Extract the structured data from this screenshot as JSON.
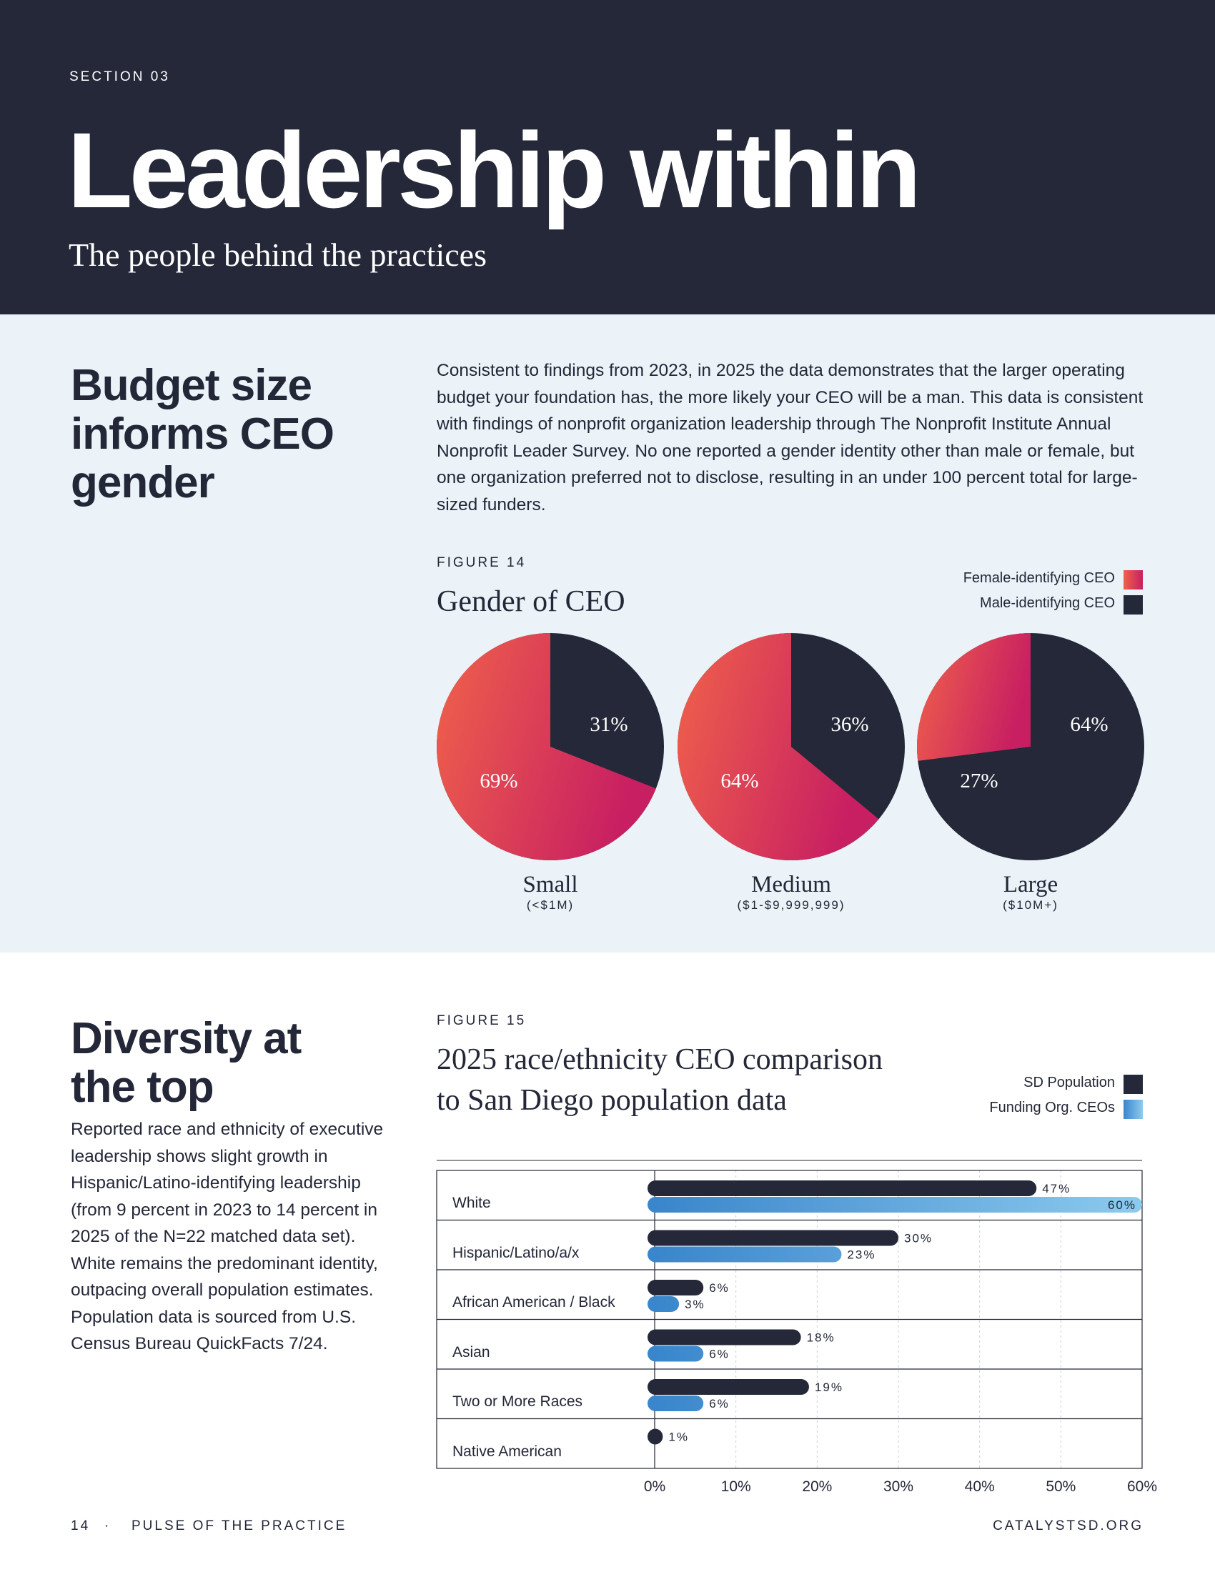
{
  "header": {
    "eyebrow": "SECTION 03",
    "title": "Leadership within",
    "subtitle": "The people behind the practices"
  },
  "budget": {
    "heading_lines": [
      "Budget size",
      "informs CEO",
      "gender"
    ],
    "body": "Consistent to findings from 2023, in 2025 the data demonstrates that the larger operating budget your foundation has, the more likely your CEO will be a man. This data is consistent with findings of nonprofit organization leadership through The Nonprofit Institute Annual Nonprofit Leader Survey. No one reported a gender identity other than male or female, but one organization preferred not to disclose, resulting in an under 100 percent total for large-sized funders."
  },
  "figure14": {
    "label": "FIGURE 14",
    "title": "Gender of CEO",
    "legend": [
      {
        "label": "Female-identifying CEO",
        "color": "#e5385e"
      },
      {
        "label": "Male-identifying CEO",
        "color": "#242838"
      }
    ],
    "colors": {
      "female_start": "#f0624a",
      "female_end": "#c81f62",
      "male": "#242838"
    },
    "chart_data": {
      "type": "pie",
      "title": "Gender of CEO",
      "series_names": [
        "Female-identifying CEO",
        "Male-identifying CEO"
      ],
      "pies": [
        {
          "name": "Small",
          "range": "(<$1M)",
          "female": 69,
          "male": 31,
          "female_label": "69%",
          "male_label": "31%"
        },
        {
          "name": "Medium",
          "range": "($1-$9,999,999)",
          "female": 64,
          "male": 36,
          "female_label": "64%",
          "male_label": "36%"
        },
        {
          "name": "Large",
          "range": "($10M+)",
          "female": 27,
          "male": 64,
          "female_label": "27%",
          "male_label": "64%"
        }
      ]
    }
  },
  "diversity": {
    "heading_lines": [
      "Diversity at",
      "the top"
    ],
    "body": "Reported race and ethnicity of executive leadership shows slight growth in Hispanic/Latino-identifying leadership (from 9 percent in 2023 to 14 percent in 2025 of the N=22 matched data set). White remains the predominant identity, outpacing overall population estimates. Population data is sourced from U.S. Census Bureau QuickFacts 7/24."
  },
  "figure15": {
    "label": "FIGURE 15",
    "title_lines": [
      "2025 race/ethnicity CEO comparison",
      "to San Diego population data"
    ],
    "legend": [
      {
        "label": "SD Population",
        "color": "#242838"
      },
      {
        "label": "Funding Org. CEOs",
        "color": "#3d8ed0"
      }
    ],
    "colors": {
      "sd": "#242838",
      "ceo_start": "#3a86cc",
      "ceo_end": "#8ccbef"
    },
    "chart_data": {
      "type": "bar",
      "orientation": "horizontal",
      "categories": [
        "White",
        "Hispanic/Latino/a/x",
        "African American / Black",
        "Asian",
        "Two or More Races",
        "Native American"
      ],
      "series": [
        {
          "name": "SD Population",
          "values": [
            47,
            30,
            6,
            18,
            19,
            1
          ],
          "labels": [
            "47%",
            "30%",
            "6%",
            "18%",
            "19%",
            "1%"
          ]
        },
        {
          "name": "Funding Org. CEOs",
          "values": [
            60,
            23,
            3,
            6,
            6,
            0
          ],
          "labels": [
            "60%",
            "23%",
            "3%",
            "6%",
            "6%",
            ""
          ]
        }
      ],
      "xlim": [
        0,
        60
      ],
      "xticks": [
        "0%",
        "10%",
        "20%",
        "30%",
        "40%",
        "50%",
        "60%"
      ]
    }
  },
  "footer": {
    "page_number": "14",
    "separator": "·",
    "publication": "PULSE OF THE PRACTICE",
    "website": "CATALYSTSD.ORG"
  }
}
